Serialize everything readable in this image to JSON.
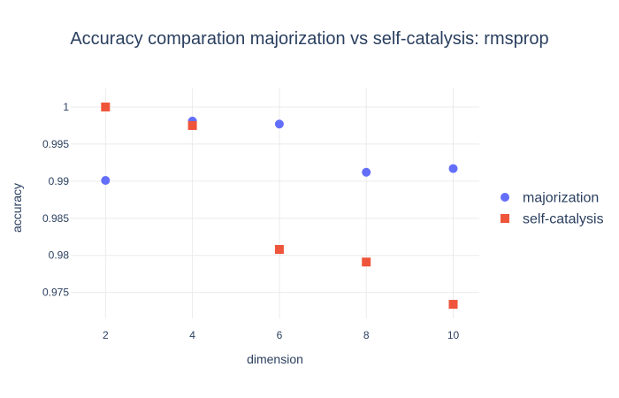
{
  "chart_data": {
    "type": "scatter",
    "title": "Accuracy comparation majorization vs self-catalysis: rmsprop",
    "xlabel": "dimension",
    "ylabel": "accuracy",
    "x_ticks": [
      2,
      4,
      6,
      8,
      10
    ],
    "y_ticks": [
      {
        "value": 0.975,
        "label": "0.975"
      },
      {
        "value": 0.98,
        "label": "0.98"
      },
      {
        "value": 0.985,
        "label": "0.985"
      },
      {
        "value": 0.99,
        "label": "0.99"
      },
      {
        "value": 0.995,
        "label": "0.995"
      },
      {
        "value": 1.0,
        "label": "1"
      }
    ],
    "xlim": [
      1.2,
      10.6
    ],
    "ylim": [
      0.9715,
      1.0025
    ],
    "grid": true,
    "legend_position": "right",
    "series": [
      {
        "name": "majorization",
        "marker": "circle",
        "color": "#636efa",
        "x": [
          2,
          4,
          6,
          8,
          10
        ],
        "y": [
          0.9901,
          0.9981,
          0.9977,
          0.9912,
          0.9917
        ]
      },
      {
        "name": "self-catalysis",
        "marker": "square",
        "color": "#ef553b",
        "x": [
          2,
          4,
          6,
          8,
          10
        ],
        "y": [
          1.0,
          0.9975,
          0.9808,
          0.9791,
          0.9734
        ]
      }
    ]
  }
}
